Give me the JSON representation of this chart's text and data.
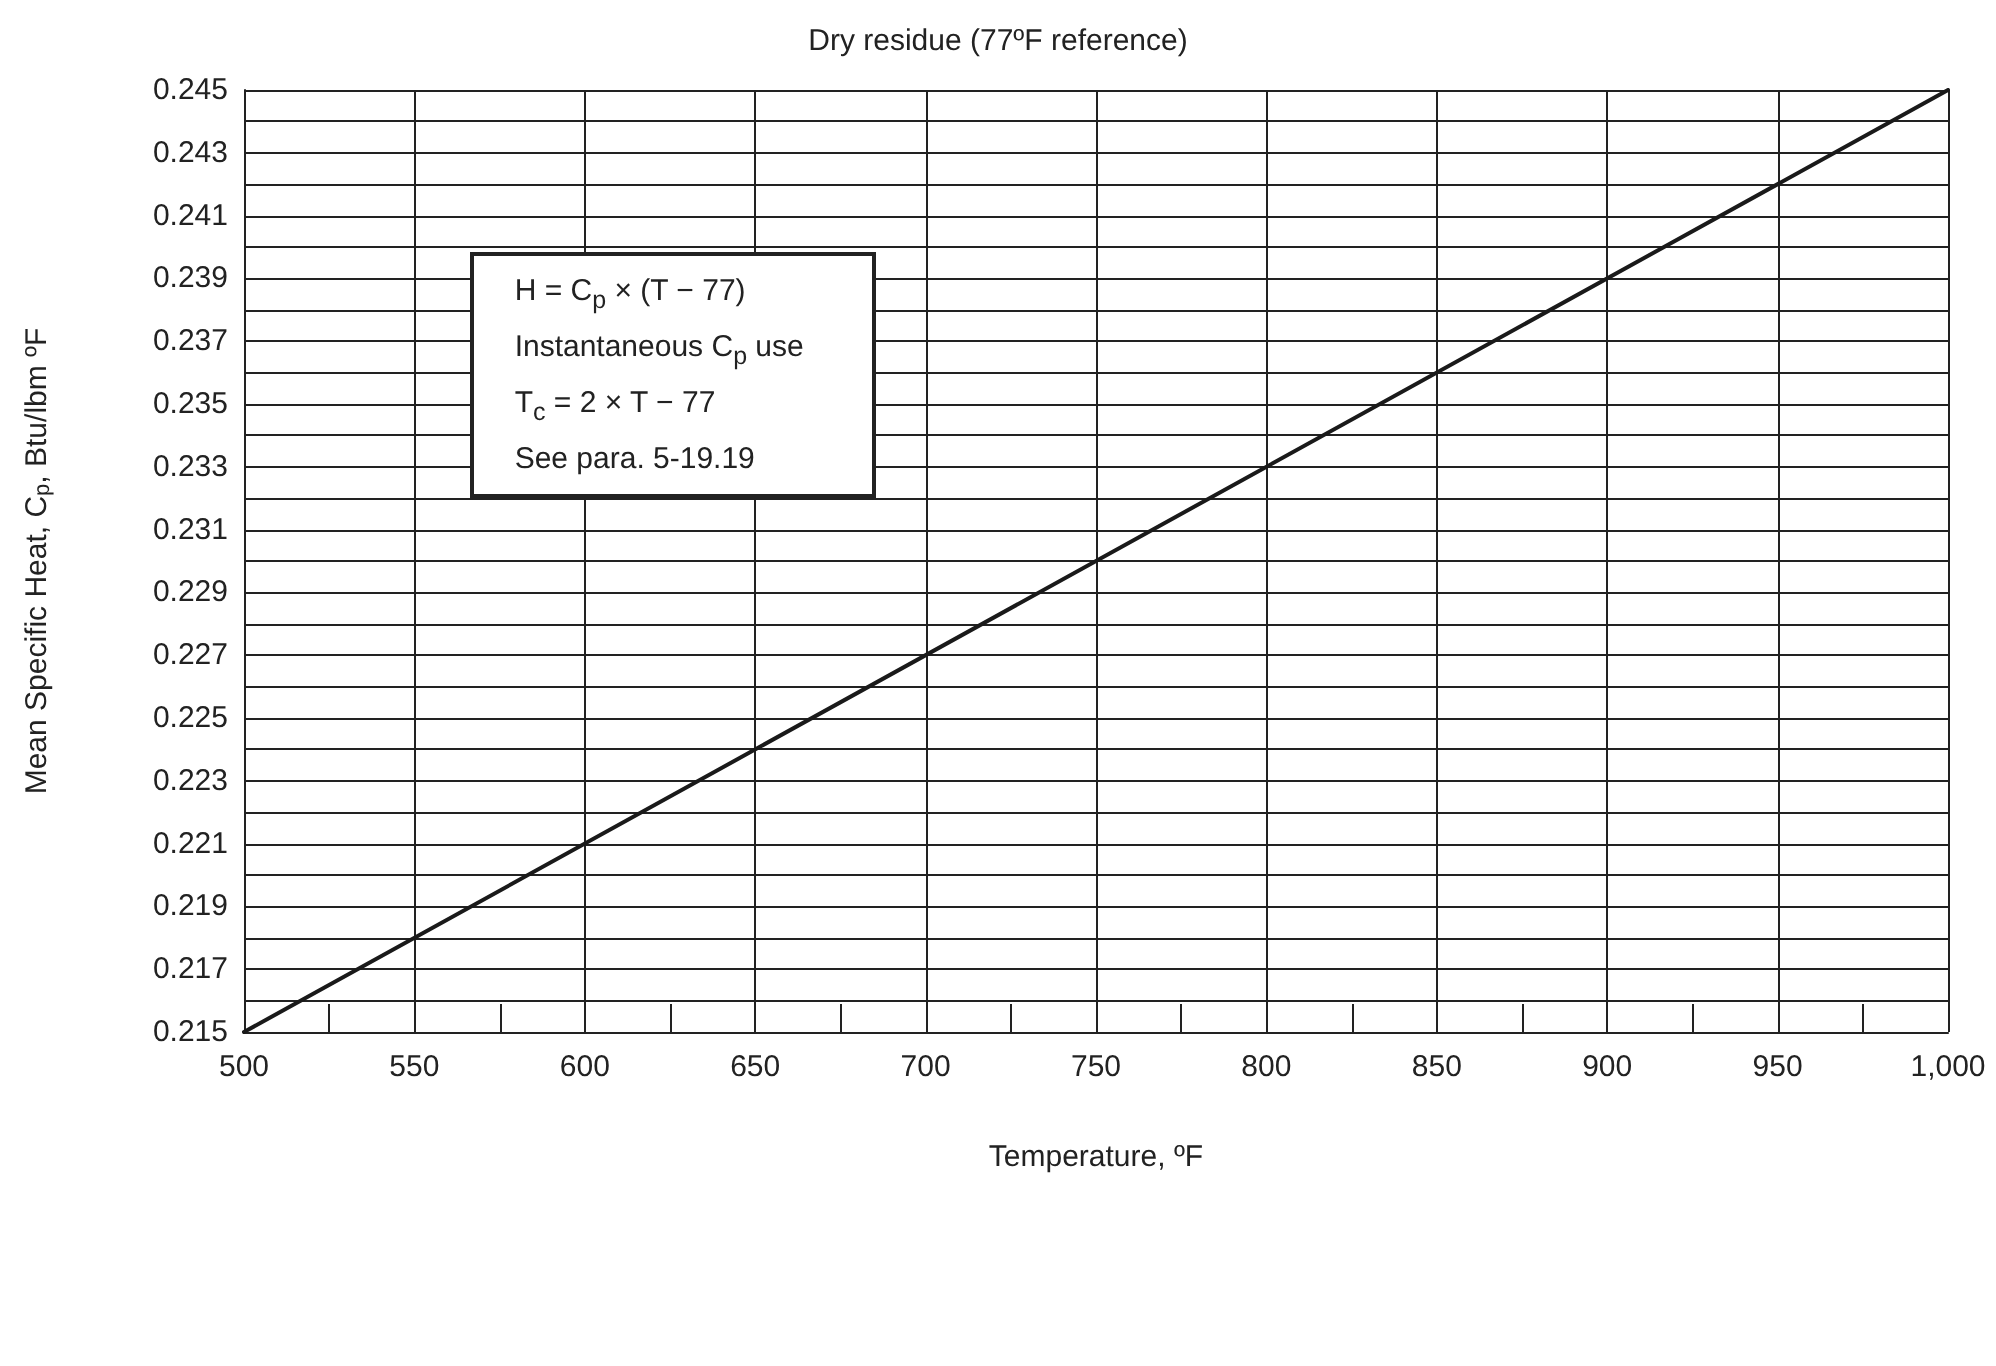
{
  "chart_data": {
    "type": "line",
    "title": "Dry residue (77ºF reference)",
    "xlabel": "Temperature, ºF",
    "ylabel": "Mean Specific Heat, C$_{p}$, Btu/lbm ºF",
    "annotations": [
      "H = C$_{p}$ × (T − 77)",
      "Instantaneous C$_{p}$ use",
      "T$_{c}$ = 2 × T − 77",
      "See para. 5-19.19"
    ],
    "series": [
      {
        "color": "#1a1a1a",
        "x": [
          500,
          1000
        ],
        "values": [
          0.215,
          0.245
        ]
      }
    ],
    "xlim": [
      500,
      1000
    ],
    "xticks": [
      500,
      {
        "value": 525,
        "label": null
      },
      550,
      {
        "value": 575,
        "label": null
      },
      600,
      {
        "value": 625,
        "label": null
      },
      650,
      {
        "value": 675,
        "label": null
      },
      700,
      {
        "value": 725,
        "label": null
      },
      750,
      {
        "value": 775,
        "label": null
      },
      800,
      {
        "value": 825,
        "label": null
      },
      850,
      {
        "value": 875,
        "label": null
      },
      900,
      {
        "value": 925,
        "label": null
      },
      950,
      {
        "value": 975,
        "label": null
      },
      {
        "value": 1000,
        "label": "1,000"
      }
    ],
    "ylim": [
      0.215,
      0.245
    ],
    "yticks": [
      0.215,
      {
        "value": 0.216,
        "label": null
      },
      0.217,
      {
        "value": 0.218,
        "label": null
      },
      0.219,
      {
        "value": 0.22,
        "label": null
      },
      0.221,
      {
        "value": 0.222,
        "label": null
      },
      0.223,
      {
        "value": 0.224,
        "label": null
      },
      0.225,
      {
        "value": 0.226,
        "label": null
      },
      0.227,
      {
        "value": 0.228,
        "label": null
      },
      0.229,
      {
        "value": 0.23,
        "label": null
      },
      0.231,
      {
        "value": 0.232,
        "label": null
      },
      0.233,
      {
        "value": 0.234,
        "label": null
      },
      0.235,
      {
        "value": 0.236,
        "label": null
      },
      0.237,
      {
        "value": 0.238,
        "label": null
      },
      0.239,
      {
        "value": 0.24,
        "label": null
      },
      0.241,
      {
        "value": 0.242,
        "label": null
      },
      0.243,
      {
        "value": 0.244,
        "label": null
      },
      0.245
    ],
    "grid": true,
    "line_style": "solid",
    "marker": "none"
  }
}
